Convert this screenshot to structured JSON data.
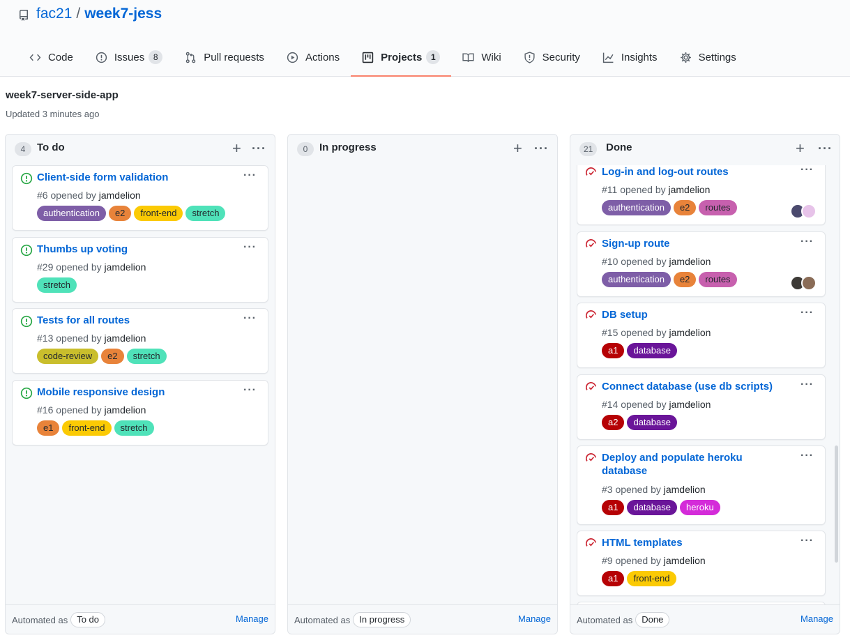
{
  "repo": {
    "owner": "fac21",
    "separator": "/",
    "name": "week7-jess"
  },
  "tabs": [
    {
      "label": "Code",
      "icon": "code-icon",
      "count": null
    },
    {
      "label": "Issues",
      "icon": "issue-icon",
      "count": "8"
    },
    {
      "label": "Pull requests",
      "icon": "pull-request-icon",
      "count": null
    },
    {
      "label": "Actions",
      "icon": "play-icon",
      "count": null
    },
    {
      "label": "Projects",
      "icon": "project-icon",
      "count": "1"
    },
    {
      "label": "Wiki",
      "icon": "book-icon",
      "count": null
    },
    {
      "label": "Security",
      "icon": "shield-icon",
      "count": null
    },
    {
      "label": "Insights",
      "icon": "graph-icon",
      "count": null
    },
    {
      "label": "Settings",
      "icon": "gear-icon",
      "count": null
    }
  ],
  "project": {
    "name": "week7-server-side-app",
    "updated": "Updated 3 minutes ago"
  },
  "colors": {
    "authentication": "#7e5ea7",
    "e1": "#e8833a",
    "e2": "#e8833a",
    "front-end": "#fbca04",
    "stretch": "#4fe2b9",
    "code-review": "#c9be2c",
    "routes": "#c760ae",
    "a1": "#b60205",
    "a2": "#b60205",
    "database": "#6a1599",
    "heroku": "#d42bd9"
  },
  "columns": [
    {
      "count": "4",
      "title": "To do",
      "automated_label": "Automated as",
      "automated_value": "To do",
      "manage": "Manage",
      "cards": [
        {
          "title": "Client-side form validation",
          "number": "#6 opened by",
          "author": "jamdelion",
          "labels": [
            "authentication",
            "e2",
            "front-end",
            "stretch"
          ]
        },
        {
          "title": "Thumbs up voting",
          "number": "#29 opened by",
          "author": "jamdelion",
          "labels": [
            "stretch"
          ]
        },
        {
          "title": "Tests for all routes",
          "number": "#13 opened by",
          "author": "jamdelion",
          "labels": [
            "code-review",
            "e2",
            "stretch"
          ]
        },
        {
          "title": "Mobile responsive design",
          "number": "#16 opened by",
          "author": "jamdelion",
          "labels": [
            "e1",
            "front-end",
            "stretch"
          ]
        }
      ]
    },
    {
      "count": "0",
      "title": "In progress",
      "automated_label": "Automated as",
      "automated_value": "In progress",
      "manage": "Manage",
      "cards": []
    },
    {
      "count": "21",
      "title": "Done",
      "automated_label": "Automated as",
      "automated_value": "Done",
      "manage": "Manage",
      "cards": [
        {
          "title": "Log-in and log-out routes",
          "number": "#11 opened by",
          "author": "jamdelion",
          "labels": [
            "authentication",
            "e2",
            "routes"
          ]
        },
        {
          "title": "Sign-up route",
          "number": "#10 opened by",
          "author": "jamdelion",
          "labels": [
            "authentication",
            "e2",
            "routes"
          ]
        },
        {
          "title": "DB setup",
          "number": "#15 opened by",
          "author": "jamdelion",
          "labels": [
            "a1",
            "database"
          ]
        },
        {
          "title": "Connect database (use db scripts)",
          "number": "#14 opened by",
          "author": "jamdelion",
          "labels": [
            "a2",
            "database"
          ]
        },
        {
          "title": "Deploy and populate heroku database",
          "number": "#3 opened by",
          "author": "jamdelion",
          "labels": [
            "a1",
            "database",
            "heroku"
          ]
        },
        {
          "title": "HTML templates",
          "number": "#9 opened by",
          "author": "jamdelion",
          "labels": [
            "a1",
            "front-end"
          ]
        }
      ]
    }
  ]
}
